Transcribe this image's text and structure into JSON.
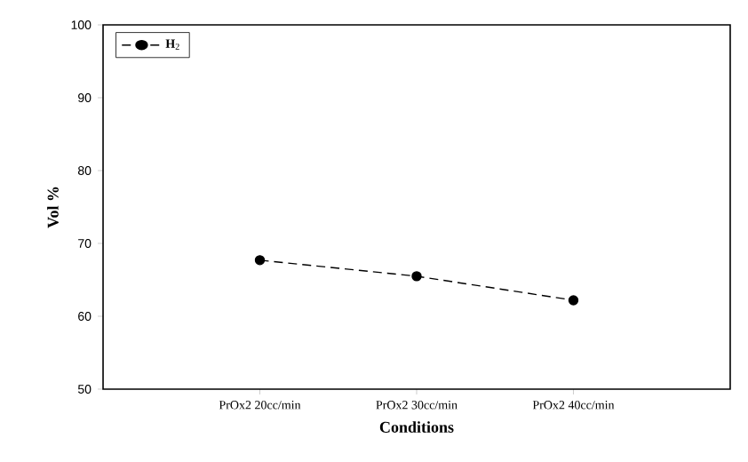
{
  "chart_data": {
    "type": "line",
    "xlabel": "Conditions",
    "ylabel": "**Vol** %",
    "categories": [
      "PrOx2 20cc/min",
      "PrOx2 30cc/min",
      "PrOx2 40cc/min"
    ],
    "series": [
      {
        "name": "**H**$_{2}$",
        "color": "#000000",
        "values": [
          67.7,
          65.5,
          62.2
        ]
      }
    ],
    "ylim": [
      50,
      100
    ],
    "yticks": [
      50,
      60,
      70,
      80,
      90,
      100
    ],
    "grid": false,
    "legend": "top left",
    "marker": "circle",
    "line_style": "dashed"
  }
}
